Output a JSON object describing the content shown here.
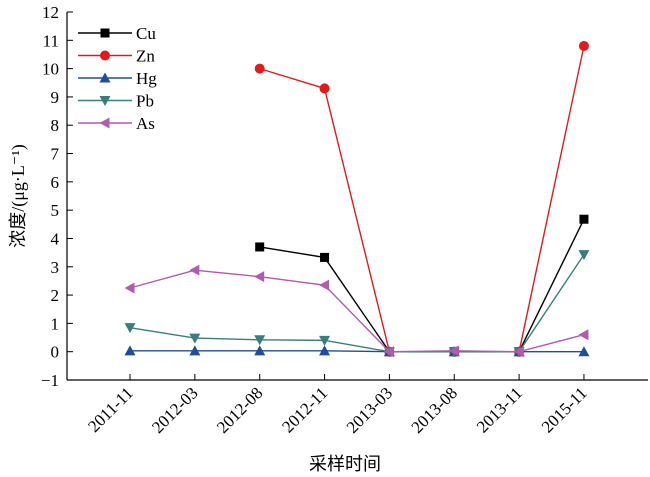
{
  "chart_data": {
    "type": "line",
    "title": "",
    "xlabel": "采样时间",
    "ylabel": "浓度/(μg·L⁻¹)",
    "ylim": [
      -1,
      12
    ],
    "yticks": [
      "−1",
      "0",
      "1",
      "2",
      "3",
      "4",
      "5",
      "6",
      "7",
      "8",
      "9",
      "10",
      "11",
      "12"
    ],
    "categories": [
      "2011-11",
      "2012-03",
      "2012-08",
      "2012-11",
      "2013-03",
      "2013-08",
      "2013-11",
      "2015-11"
    ],
    "legend_position": "top-left",
    "grid": false,
    "series": [
      {
        "name": "Cu",
        "color": "#000000",
        "marker": "square",
        "values": [
          null,
          null,
          3.7,
          3.33,
          0,
          0,
          0,
          4.68
        ]
      },
      {
        "name": "Zn",
        "color": "#e31a1c",
        "marker": "circle",
        "values": [
          null,
          null,
          10.0,
          9.3,
          0,
          0,
          0,
          10.8
        ]
      },
      {
        "name": "Hg",
        "color": "#1f4e9e",
        "marker": "triangle-up",
        "values": [
          0.03,
          0.03,
          0.03,
          0.03,
          0.0,
          0.0,
          0.0,
          0.0
        ]
      },
      {
        "name": "Pb",
        "color": "#3a7d7d",
        "marker": "triangle-down",
        "values": [
          0.85,
          0.48,
          0.42,
          0.4,
          0.0,
          0.0,
          0.0,
          3.43
        ]
      },
      {
        "name": "As",
        "color": "#b05ab0",
        "marker": "triangle-left",
        "values": [
          2.25,
          2.88,
          2.65,
          2.35,
          0.0,
          0.03,
          0.0,
          0.6
        ]
      }
    ]
  }
}
